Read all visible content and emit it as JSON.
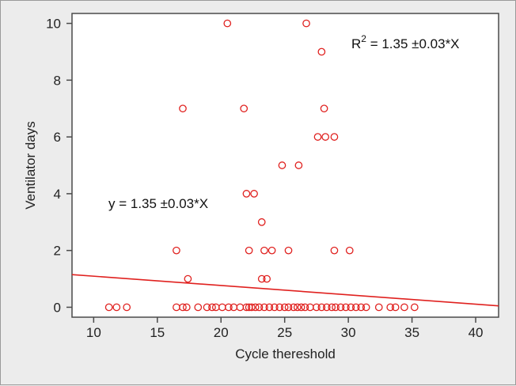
{
  "chart_data": {
    "type": "scatter",
    "xlabel": "Cycle thereshold",
    "ylabel": "Ventilator days",
    "xlim": [
      8.3,
      41.8
    ],
    "ylim": [
      -0.35,
      10.35
    ],
    "xticks": [
      10,
      15,
      20,
      25,
      30,
      35,
      40
    ],
    "yticks": [
      0,
      2,
      4,
      6,
      8,
      10
    ],
    "grid": false,
    "marker_color": "#e0211f",
    "line_color": "#e0211f",
    "annotations": {
      "r2_base": "R",
      "r2_sup": "2",
      "r2_rest": " = 1.35 ±0.03*X",
      "equation": "y = 1.35 ±0.03*X"
    },
    "regression_line": {
      "x": [
        8.3,
        41.8
      ],
      "y": [
        1.15,
        0.05
      ]
    },
    "points": [
      [
        11.2,
        0
      ],
      [
        11.8,
        0
      ],
      [
        12.6,
        0
      ],
      [
        16.5,
        0
      ],
      [
        17.0,
        0
      ],
      [
        17.3,
        0
      ],
      [
        18.2,
        0
      ],
      [
        18.9,
        0
      ],
      [
        19.3,
        0
      ],
      [
        19.6,
        0
      ],
      [
        20.1,
        0
      ],
      [
        20.6,
        0
      ],
      [
        21.0,
        0
      ],
      [
        21.5,
        0
      ],
      [
        22.0,
        0
      ],
      [
        22.2,
        0
      ],
      [
        22.4,
        0
      ],
      [
        22.7,
        0
      ],
      [
        23.0,
        0
      ],
      [
        23.4,
        0
      ],
      [
        23.8,
        0
      ],
      [
        24.2,
        0
      ],
      [
        24.6,
        0
      ],
      [
        25.0,
        0
      ],
      [
        25.3,
        0
      ],
      [
        25.7,
        0
      ],
      [
        26.0,
        0
      ],
      [
        26.3,
        0
      ],
      [
        26.6,
        0
      ],
      [
        27.0,
        0
      ],
      [
        27.5,
        0
      ],
      [
        27.9,
        0
      ],
      [
        28.3,
        0
      ],
      [
        28.7,
        0
      ],
      [
        29.0,
        0
      ],
      [
        29.4,
        0
      ],
      [
        29.8,
        0
      ],
      [
        30.2,
        0
      ],
      [
        30.6,
        0
      ],
      [
        31.0,
        0
      ],
      [
        31.4,
        0
      ],
      [
        32.4,
        0
      ],
      [
        33.3,
        0
      ],
      [
        33.7,
        0
      ],
      [
        34.4,
        0
      ],
      [
        35.2,
        0
      ],
      [
        17.4,
        1
      ],
      [
        23.2,
        1
      ],
      [
        23.6,
        1
      ],
      [
        16.5,
        2
      ],
      [
        22.2,
        2
      ],
      [
        23.4,
        2
      ],
      [
        24.0,
        2
      ],
      [
        25.3,
        2
      ],
      [
        28.9,
        2
      ],
      [
        30.1,
        2
      ],
      [
        23.2,
        3
      ],
      [
        22.0,
        4
      ],
      [
        22.6,
        4
      ],
      [
        24.8,
        5
      ],
      [
        26.1,
        5
      ],
      [
        27.6,
        6
      ],
      [
        28.2,
        6
      ],
      [
        28.9,
        6
      ],
      [
        17.0,
        7
      ],
      [
        21.8,
        7
      ],
      [
        28.1,
        7
      ],
      [
        27.9,
        9
      ],
      [
        20.5,
        10
      ],
      [
        26.7,
        10
      ]
    ]
  }
}
